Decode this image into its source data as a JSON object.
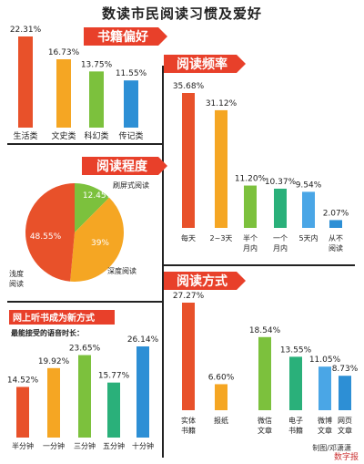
{
  "title": "数读市民阅读习惯及爱好",
  "credit": "制图/邓潇潇",
  "watermark": "数字报",
  "colors": {
    "banner": "#e8402a",
    "red": "#e8512a",
    "orange": "#f5a623",
    "green": "#7cc13d",
    "teal": "#2ab07a",
    "blue": "#2d8fd5",
    "lightblue": "#4aa6e6"
  },
  "chart_data": [
    {
      "type": "bar",
      "banner": "书籍偏好",
      "categories": [
        "生活类",
        "文史类",
        "科幻类",
        "传记类"
      ],
      "values": [
        22.31,
        16.73,
        13.75,
        11.55
      ],
      "value_labels": [
        "22.31%",
        "16.73%",
        "13.75%",
        "11.55%"
      ],
      "colors": [
        "#e8512a",
        "#f5a623",
        "#7cc13d",
        "#2d8fd5"
      ]
    },
    {
      "type": "bar",
      "banner": "阅读频率",
      "categories": [
        "每天",
        "2~3天",
        "半个月内",
        "一个月内",
        "5天内",
        "从不阅读"
      ],
      "category_lines": [
        [
          "每天"
        ],
        [
          "2~3天"
        ],
        [
          "半个",
          "月内"
        ],
        [
          "一个",
          "月内"
        ],
        [
          "5天内"
        ],
        [
          "从不",
          "阅读"
        ]
      ],
      "values": [
        35.68,
        31.12,
        11.2,
        10.37,
        9.54,
        2.07
      ],
      "value_labels": [
        "35.68%",
        "31.12%",
        "11.20%",
        "10.37%",
        "9.54%",
        "2.07%"
      ],
      "colors": [
        "#e8512a",
        "#f5a623",
        "#7cc13d",
        "#2ab07a",
        "#4aa6e6",
        "#2d8fd5"
      ]
    },
    {
      "type": "pie",
      "banner": "阅读程度",
      "slices": [
        {
          "label": "刷屏式阅读",
          "value": 12.45,
          "value_label": "12.45%",
          "color": "#7cc13d"
        },
        {
          "label": "深度阅读",
          "value": 39,
          "value_label": "39%",
          "color": "#f5a623"
        },
        {
          "label": "浅度阅读",
          "value": 48.55,
          "value_label": "48.55%",
          "color": "#e8512a"
        }
      ]
    },
    {
      "type": "bar",
      "banner": "网上听书成为新方式",
      "subtitle": "最能接受的语音时长：",
      "categories": [
        "半分钟",
        "一分钟",
        "三分钟",
        "五分钟",
        "十分钟"
      ],
      "values": [
        14.52,
        19.92,
        23.65,
        15.77,
        26.14
      ],
      "value_labels": [
        "14.52%",
        "19.92%",
        "23.65%",
        "15.77%",
        "26.14%"
      ],
      "colors": [
        "#e8512a",
        "#f5a623",
        "#7cc13d",
        "#2ab07a",
        "#2d8fd5"
      ]
    },
    {
      "type": "bar",
      "banner": "阅读方式",
      "categories": [
        "实体书籍",
        "报纸",
        "微信文章",
        "电子书籍",
        "微博文章",
        "网页文章"
      ],
      "category_lines": [
        [
          "实体",
          "书籍"
        ],
        [
          "报纸"
        ],
        [
          "微信",
          "文章"
        ],
        [
          "电子",
          "书籍"
        ],
        [
          "微博",
          "文章"
        ],
        [
          "网页",
          "文章"
        ]
      ],
      "values": [
        27.27,
        6.6,
        18.54,
        13.55,
        11.05,
        8.73
      ],
      "value_labels": [
        "27.27%",
        "6.60%",
        "18.54%",
        "13.55%",
        "11.05%",
        "8.73%"
      ],
      "colors": [
        "#e8512a",
        "#f5a623",
        "#7cc13d",
        "#2ab07a",
        "#4aa6e6",
        "#2d8fd5"
      ]
    }
  ]
}
